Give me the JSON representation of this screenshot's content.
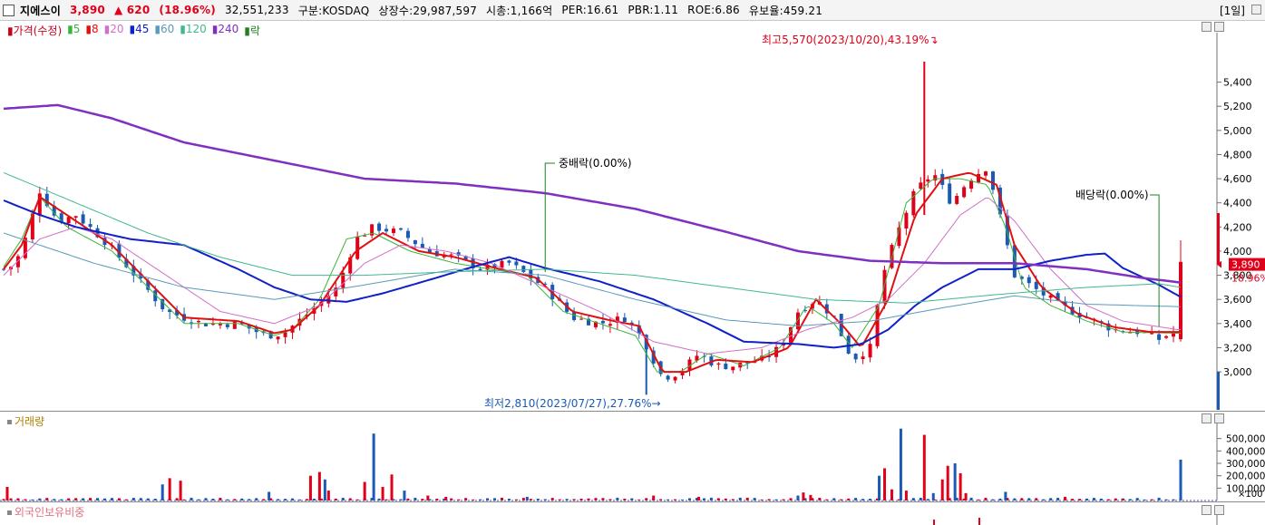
{
  "header": {
    "stock_name": "지에스이",
    "price": "3,890",
    "change": "▲ 620",
    "change_pct": "(18.96%)",
    "volume": "32,551,233",
    "market": "구분:KOSDAQ",
    "listed": "상장수:29,987,597",
    "mktcap": "시총:1,166억",
    "per": "PER:16.61",
    "pbr": "PBR:1.11",
    "roe": "ROE:6.86",
    "float": "유보율:459.21",
    "period": "[1일]"
  },
  "legend": [
    {
      "label": "가격(수정)",
      "color": "#c8001a"
    },
    {
      "label": "5",
      "color": "#3cb43c"
    },
    {
      "label": "8",
      "color": "#e01010"
    },
    {
      "label": "20",
      "color": "#d070c8"
    },
    {
      "label": "45",
      "color": "#1020c8"
    },
    {
      "label": "60",
      "color": "#5a9ab8"
    },
    {
      "label": "120",
      "color": "#40b890"
    },
    {
      "label": "240",
      "color": "#8030c0"
    },
    {
      "label": "락",
      "color": "#208020"
    }
  ],
  "colors": {
    "up": "#e0001a",
    "down": "#1a5ab4",
    "ma5": "#3cb43c",
    "ma8": "#e01010",
    "ma20": "#d070c8",
    "ma45": "#1020c8",
    "ma60": "#5a9ab8",
    "ma120": "#40b890",
    "ma240": "#8030c0",
    "marker": "#208020"
  },
  "annotations": {
    "high": "최고5,570(2023/10/20),43.19%",
    "low": "최저2,810(2023/07/27),27.76%",
    "ex1": "중배락(0.00%)",
    "ex2": "배당락(0.00%)"
  },
  "panes": {
    "volume": "거래량",
    "foreign": "외국인보유비중"
  },
  "chart_data": {
    "type": "candlestick",
    "price_axis": {
      "ticks": [
        3000,
        3200,
        3400,
        3600,
        3800,
        4000,
        4200,
        4400,
        4600,
        4800,
        5000,
        5200,
        5400
      ],
      "labels": [
        "3,000",
        "3,200",
        "3,400",
        "3,600",
        "3,800",
        "4,000",
        "4,200",
        "4,400",
        "4,600",
        "4,800",
        "5,000",
        "5,200",
        "5,400"
      ],
      "range": [
        2700,
        5780
      ]
    },
    "current": {
      "price": "3,890",
      "pct": "18.96%"
    },
    "volume_axis": {
      "ticks": [
        100000,
        200000,
        300000,
        400000,
        500000
      ],
      "labels": [
        "100,000",
        "200,000",
        "300,000",
        "400,000",
        "500,000"
      ],
      "unit": "×100",
      "range": [
        0,
        600000
      ]
    },
    "price_keys": [
      [
        0,
        3850
      ],
      [
        5,
        3880
      ],
      [
        10,
        4000
      ],
      [
        20,
        4500
      ],
      [
        30,
        4250
      ],
      [
        40,
        4300
      ],
      [
        55,
        4100
      ],
      [
        70,
        3850
      ],
      [
        90,
        3500
      ],
      [
        110,
        3400
      ],
      [
        130,
        3400
      ],
      [
        145,
        3300
      ],
      [
        155,
        3320
      ],
      [
        170,
        3500
      ],
      [
        185,
        3700
      ],
      [
        195,
        4100
      ],
      [
        205,
        4200
      ],
      [
        220,
        4150
      ],
      [
        235,
        4000
      ],
      [
        250,
        3950
      ],
      [
        265,
        3850
      ],
      [
        280,
        3900
      ],
      [
        290,
        3800
      ],
      [
        300,
        3700
      ],
      [
        315,
        3450
      ],
      [
        330,
        3400
      ],
      [
        345,
        3450
      ],
      [
        355,
        3250
      ],
      [
        365,
        2950
      ],
      [
        375,
        3000
      ],
      [
        385,
        3150
      ],
      [
        395,
        3050
      ],
      [
        405,
        3050
      ],
      [
        420,
        3100
      ],
      [
        430,
        3200
      ],
      [
        440,
        3500
      ],
      [
        450,
        3600
      ],
      [
        460,
        3450
      ],
      [
        470,
        3100
      ],
      [
        480,
        3200
      ],
      [
        487,
        3800
      ],
      [
        495,
        4150
      ],
      [
        505,
        4500
      ],
      [
        515,
        4650
      ],
      [
        525,
        4400
      ],
      [
        535,
        4600
      ],
      [
        545,
        4700
      ],
      [
        555,
        4100
      ],
      [
        560,
        3800
      ],
      [
        570,
        3700
      ],
      [
        585,
        3550
      ],
      [
        600,
        3450
      ],
      [
        615,
        3350
      ],
      [
        630,
        3330
      ],
      [
        640,
        3270
      ],
      [
        648,
        3330
      ],
      [
        652,
        3890
      ]
    ],
    "ma_keys": {
      "ma5": [
        [
          0,
          3870
        ],
        [
          10,
          4100
        ],
        [
          20,
          4450
        ],
        [
          35,
          4200
        ],
        [
          60,
          4000
        ],
        [
          80,
          3700
        ],
        [
          100,
          3400
        ],
        [
          130,
          3400
        ],
        [
          150,
          3300
        ],
        [
          160,
          3350
        ],
        [
          175,
          3600
        ],
        [
          190,
          4100
        ],
        [
          205,
          4150
        ],
        [
          225,
          4000
        ],
        [
          250,
          3900
        ],
        [
          270,
          3850
        ],
        [
          290,
          3800
        ],
        [
          310,
          3500
        ],
        [
          330,
          3400
        ],
        [
          350,
          3300
        ],
        [
          362,
          3000
        ],
        [
          375,
          3000
        ],
        [
          390,
          3150
        ],
        [
          410,
          3050
        ],
        [
          430,
          3200
        ],
        [
          445,
          3550
        ],
        [
          460,
          3400
        ],
        [
          470,
          3200
        ],
        [
          485,
          3550
        ],
        [
          500,
          4400
        ],
        [
          515,
          4600
        ],
        [
          530,
          4600
        ],
        [
          545,
          4550
        ],
        [
          555,
          4200
        ],
        [
          565,
          3700
        ],
        [
          580,
          3550
        ],
        [
          600,
          3420
        ],
        [
          620,
          3330
        ],
        [
          650,
          3320
        ]
      ],
      "ma8": [
        [
          0,
          3850
        ],
        [
          10,
          4050
        ],
        [
          20,
          4450
        ],
        [
          40,
          4250
        ],
        [
          60,
          4050
        ],
        [
          80,
          3750
        ],
        [
          100,
          3450
        ],
        [
          130,
          3420
        ],
        [
          150,
          3320
        ],
        [
          160,
          3350
        ],
        [
          175,
          3550
        ],
        [
          195,
          4000
        ],
        [
          210,
          4150
        ],
        [
          230,
          4000
        ],
        [
          250,
          3950
        ],
        [
          275,
          3850
        ],
        [
          295,
          3780
        ],
        [
          315,
          3500
        ],
        [
          335,
          3430
        ],
        [
          352,
          3380
        ],
        [
          365,
          3000
        ],
        [
          378,
          3000
        ],
        [
          395,
          3100
        ],
        [
          415,
          3080
        ],
        [
          435,
          3200
        ],
        [
          450,
          3600
        ],
        [
          465,
          3380
        ],
        [
          475,
          3200
        ],
        [
          490,
          3600
        ],
        [
          505,
          4300
        ],
        [
          520,
          4600
        ],
        [
          535,
          4650
        ],
        [
          550,
          4550
        ],
        [
          560,
          4050
        ],
        [
          575,
          3700
        ],
        [
          595,
          3480
        ],
        [
          615,
          3370
        ],
        [
          635,
          3330
        ],
        [
          650,
          3330
        ]
      ],
      "ma20": [
        [
          0,
          3800
        ],
        [
          20,
          4100
        ],
        [
          40,
          4200
        ],
        [
          60,
          4100
        ],
        [
          90,
          3800
        ],
        [
          120,
          3500
        ],
        [
          150,
          3400
        ],
        [
          175,
          3550
        ],
        [
          200,
          3900
        ],
        [
          220,
          4050
        ],
        [
          245,
          4000
        ],
        [
          270,
          3900
        ],
        [
          300,
          3700
        ],
        [
          330,
          3500
        ],
        [
          360,
          3250
        ],
        [
          390,
          3150
        ],
        [
          420,
          3200
        ],
        [
          445,
          3350
        ],
        [
          470,
          3450
        ],
        [
          490,
          3600
        ],
        [
          510,
          3900
        ],
        [
          530,
          4300
        ],
        [
          545,
          4450
        ],
        [
          560,
          4250
        ],
        [
          580,
          3850
        ],
        [
          600,
          3550
        ],
        [
          620,
          3420
        ],
        [
          650,
          3350
        ]
      ],
      "ma45": [
        [
          0,
          4420
        ],
        [
          20,
          4300
        ],
        [
          40,
          4200
        ],
        [
          70,
          4100
        ],
        [
          100,
          4050
        ],
        [
          130,
          3850
        ],
        [
          150,
          3700
        ],
        [
          170,
          3600
        ],
        [
          190,
          3580
        ],
        [
          210,
          3650
        ],
        [
          240,
          3780
        ],
        [
          260,
          3870
        ],
        [
          280,
          3950
        ],
        [
          300,
          3860
        ],
        [
          330,
          3750
        ],
        [
          360,
          3600
        ],
        [
          390,
          3400
        ],
        [
          410,
          3250
        ],
        [
          440,
          3230
        ],
        [
          460,
          3200
        ],
        [
          475,
          3230
        ],
        [
          490,
          3350
        ],
        [
          505,
          3550
        ],
        [
          520,
          3700
        ],
        [
          540,
          3850
        ],
        [
          560,
          3850
        ],
        [
          580,
          3920
        ],
        [
          600,
          3970
        ],
        [
          610,
          3980
        ],
        [
          620,
          3860
        ],
        [
          640,
          3720
        ],
        [
          652,
          3620
        ]
      ],
      "ma60": [
        [
          0,
          4150
        ],
        [
          50,
          3900
        ],
        [
          100,
          3700
        ],
        [
          150,
          3600
        ],
        [
          200,
          3720
        ],
        [
          250,
          3850
        ],
        [
          300,
          3800
        ],
        [
          350,
          3600
        ],
        [
          400,
          3430
        ],
        [
          440,
          3380
        ],
        [
          480,
          3420
        ],
        [
          520,
          3530
        ],
        [
          560,
          3630
        ],
        [
          600,
          3560
        ],
        [
          652,
          3540
        ]
      ],
      "ma120": [
        [
          0,
          4650
        ],
        [
          40,
          4400
        ],
        [
          80,
          4150
        ],
        [
          120,
          3950
        ],
        [
          160,
          3800
        ],
        [
          200,
          3800
        ],
        [
          250,
          3830
        ],
        [
          300,
          3850
        ],
        [
          350,
          3800
        ],
        [
          400,
          3700
        ],
        [
          450,
          3600
        ],
        [
          500,
          3570
        ],
        [
          550,
          3640
        ],
        [
          600,
          3700
        ],
        [
          640,
          3730
        ],
        [
          652,
          3700
        ]
      ],
      "ma240": [
        [
          0,
          5180
        ],
        [
          30,
          5210
        ],
        [
          60,
          5100
        ],
        [
          100,
          4900
        ],
        [
          150,
          4750
        ],
        [
          200,
          4600
        ],
        [
          250,
          4560
        ],
        [
          300,
          4480
        ],
        [
          350,
          4350
        ],
        [
          400,
          4160
        ],
        [
          440,
          4000
        ],
        [
          480,
          3920
        ],
        [
          520,
          3900
        ],
        [
          560,
          3900
        ],
        [
          600,
          3850
        ],
        [
          630,
          3780
        ],
        [
          652,
          3740
        ]
      ]
    },
    "spikes": [
      [
        2,
        110000
      ],
      [
        88,
        130000
      ],
      [
        92,
        180000
      ],
      [
        98,
        160000
      ],
      [
        147,
        70000
      ],
      [
        170,
        200000
      ],
      [
        175,
        230000
      ],
      [
        178,
        170000
      ],
      [
        180,
        80000
      ],
      [
        200,
        150000
      ],
      [
        205,
        540000
      ],
      [
        210,
        110000
      ],
      [
        215,
        210000
      ],
      [
        222,
        80000
      ],
      [
        235,
        40000
      ],
      [
        245,
        30000
      ],
      [
        290,
        30000
      ],
      [
        360,
        40000
      ],
      [
        385,
        30000
      ],
      [
        440,
        40000
      ],
      [
        443,
        65000
      ],
      [
        447,
        45000
      ],
      [
        485,
        200000
      ],
      [
        488,
        260000
      ],
      [
        492,
        90000
      ],
      [
        497,
        580000
      ],
      [
        500,
        80000
      ],
      [
        510,
        530000
      ],
      [
        515,
        60000
      ],
      [
        520,
        170000
      ],
      [
        523,
        280000
      ],
      [
        527,
        300000
      ],
      [
        530,
        220000
      ],
      [
        533,
        60000
      ],
      [
        555,
        70000
      ],
      [
        588,
        30000
      ],
      [
        620,
        15000
      ],
      [
        652,
        330000
      ]
    ],
    "split_markers": [
      [
        300,
        "ex1"
      ],
      [
        640,
        "ex2"
      ]
    ],
    "extremes": {
      "high_index": 510,
      "high": 5570,
      "low_index": 356,
      "low": 2810
    }
  }
}
